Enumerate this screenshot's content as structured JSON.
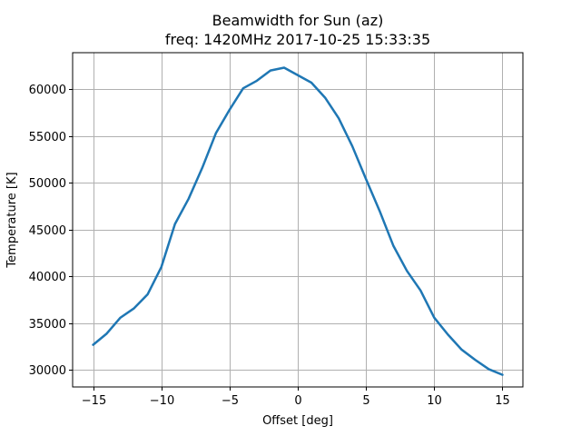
{
  "chart_data": {
    "type": "line",
    "title": "Beamwidth for Sun (az)",
    "subtitle": "freq: 1420MHz 2017-10-25 15:33:35",
    "xlabel": "Offset [deg]",
    "ylabel": "Temperature [K]",
    "xlim": [
      -16.5,
      16.5
    ],
    "ylim": [
      28200,
      63900
    ],
    "xticks": [
      -15,
      -10,
      -5,
      0,
      5,
      10,
      15
    ],
    "yticks": [
      30000,
      35000,
      40000,
      45000,
      50000,
      55000,
      60000
    ],
    "grid": true,
    "line_color": "#1f77b4",
    "x": [
      -15,
      -14,
      -13,
      -12,
      -11,
      -10,
      -9,
      -8,
      -7,
      -6,
      -5,
      -4,
      -3,
      -2,
      -1,
      0,
      1,
      2,
      3,
      4,
      5,
      6,
      7,
      8,
      9,
      10,
      11,
      12,
      13,
      14,
      15
    ],
    "series": [
      {
        "values": [
          32700,
          33900,
          35600,
          36600,
          38100,
          41000,
          45600,
          48300,
          51600,
          55300,
          57800,
          60100,
          60900,
          62000,
          62300,
          61500,
          60700,
          59100,
          56900,
          53900,
          50400,
          47000,
          43300,
          40600,
          38500,
          35600,
          33800,
          32200,
          31100,
          30100,
          29500
        ]
      }
    ]
  }
}
